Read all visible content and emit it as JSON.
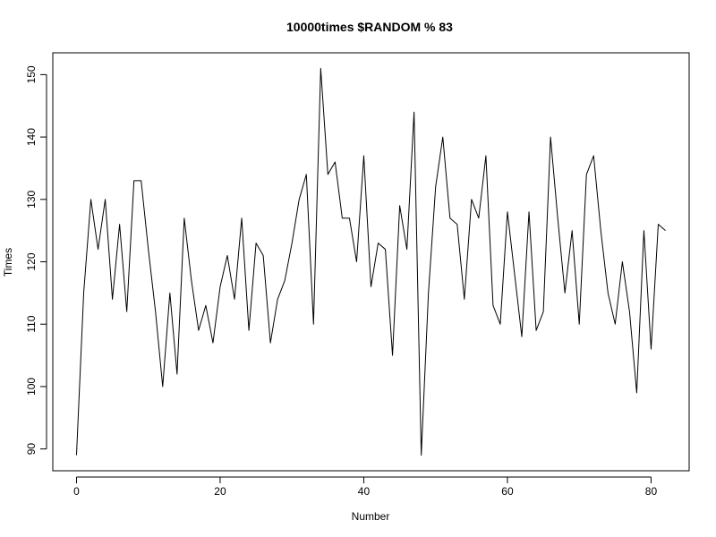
{
  "chart_data": {
    "type": "line",
    "title": "10000times $RANDOM % 83",
    "xlabel": "Number",
    "ylabel": "Times",
    "xlim": [
      -3.3,
      85.3
    ],
    "ylim": [
      86.5,
      153.5
    ],
    "x_ticks": [
      0,
      20,
      40,
      60,
      80
    ],
    "y_ticks": [
      90,
      100,
      110,
      120,
      130,
      140,
      150
    ],
    "grid": false,
    "line_color": "#000000",
    "series": [
      {
        "values": [
          89,
          115,
          130,
          122,
          130,
          114,
          126,
          112,
          133,
          133,
          122,
          112,
          100,
          115,
          102,
          127,
          117,
          109,
          113,
          107,
          116,
          121,
          114,
          127,
          109,
          123,
          121,
          107,
          114,
          117,
          123,
          130,
          134,
          110,
          151,
          134,
          136,
          127,
          127,
          120,
          137,
          116,
          123,
          122,
          105,
          129,
          122,
          144,
          89,
          115,
          132,
          140,
          127,
          126,
          114,
          130,
          127,
          137,
          113,
          110,
          128,
          118,
          108,
          128,
          109,
          112,
          140,
          127,
          115,
          125,
          110,
          134,
          137,
          125,
          115,
          110,
          120,
          112,
          99,
          125,
          106,
          126,
          125
        ]
      }
    ]
  }
}
